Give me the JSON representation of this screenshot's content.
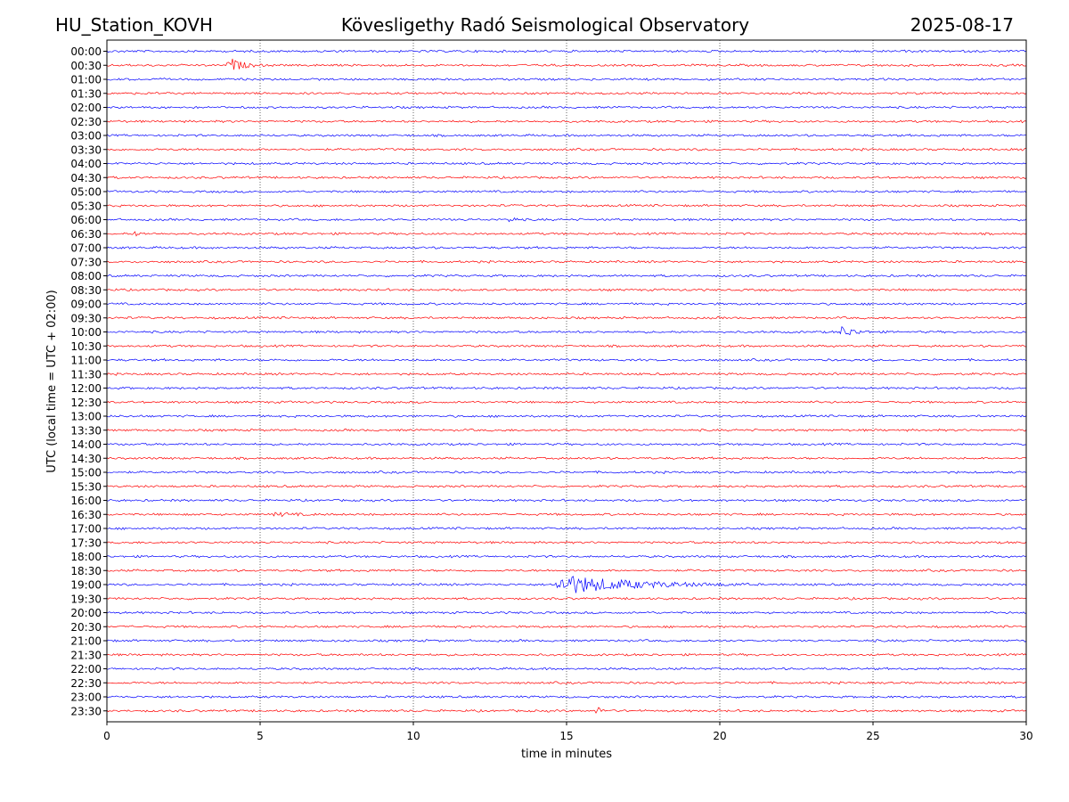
{
  "header": {
    "station": "HU_Station_KOVH",
    "title": "Kövesligethy Radó Seismological Observatory",
    "date": "2025-08-17"
  },
  "chart_data": {
    "type": "line",
    "title": "Kövesligethy Radó Seismological Observatory",
    "xlabel": "time in minutes",
    "ylabel": "UTC (local time = UTC + 02:00)",
    "xlim": [
      0,
      30
    ],
    "x_ticks": [
      "0",
      "5",
      "10",
      "15",
      "20",
      "25",
      "30"
    ],
    "grid": "vertical dotted at x = 5, 10, 15, 20, 25",
    "colors": {
      "even_hour": "#0000ff",
      "half_hour": "#ff0000",
      "grid": "#000000"
    },
    "rows": [
      "00:00",
      "00:30",
      "01:00",
      "01:30",
      "02:00",
      "02:30",
      "03:00",
      "03:30",
      "04:00",
      "04:30",
      "05:00",
      "05:30",
      "06:00",
      "06:30",
      "07:00",
      "07:30",
      "08:00",
      "08:30",
      "09:00",
      "09:30",
      "10:00",
      "10:30",
      "11:00",
      "11:30",
      "12:00",
      "12:30",
      "13:00",
      "13:30",
      "14:00",
      "14:30",
      "15:00",
      "15:30",
      "16:00",
      "16:30",
      "17:00",
      "17:30",
      "18:00",
      "18:30",
      "19:00",
      "19:30",
      "20:00",
      "20:30",
      "21:00",
      "21:30",
      "22:00",
      "22:30",
      "23:00",
      "23:30"
    ],
    "events": [
      {
        "row": "00:30",
        "start_min": 3.9,
        "duration_min": 1.2,
        "peak": 0.6
      },
      {
        "row": "06:00",
        "start_min": 13.1,
        "duration_min": 0.6,
        "peak": 0.25
      },
      {
        "row": "06:30",
        "start_min": 0.9,
        "duration_min": 0.4,
        "peak": 0.2
      },
      {
        "row": "10:00",
        "start_min": 23.9,
        "duration_min": 1.2,
        "peak": 0.45
      },
      {
        "row": "16:30",
        "start_min": 5.4,
        "duration_min": 1.8,
        "peak": 0.15
      },
      {
        "row": "19:00",
        "start_min": 14.5,
        "duration_min": 6.5,
        "peak": 0.75
      },
      {
        "row": "23:30",
        "start_min": 15.9,
        "duration_min": 0.8,
        "peak": 0.3
      }
    ]
  }
}
